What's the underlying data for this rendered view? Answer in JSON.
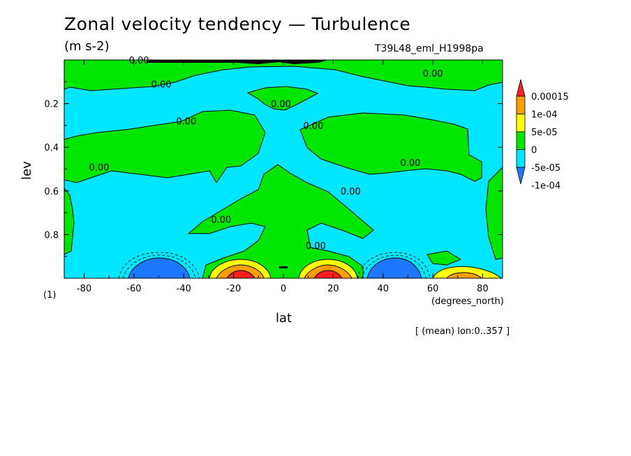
{
  "header": {
    "title": "Zonal velocity tendency — Turbulence",
    "units": "(m s-2)",
    "run_id": "T39L48_eml_H1998pa"
  },
  "footer": {
    "panel_index": "(1)",
    "x_unit": "(degrees_north)",
    "mean_note": "[ (mean) lon:0..357 ]"
  },
  "chart_data": {
    "type": "heatmap",
    "title": "Zonal velocity tendency — Turbulence",
    "units": "(m s-2)",
    "xlabel": "lat",
    "ylabel": "lev",
    "xlim": [
      -88,
      88
    ],
    "ylim": [
      0.0,
      1.0
    ],
    "y_inverted": true,
    "x_ticks": [
      -80,
      -60,
      -40,
      -20,
      0,
      20,
      40,
      60,
      80
    ],
    "y_ticks": [
      0.2,
      0.4,
      0.6,
      0.8
    ],
    "colorbar": {
      "levels": [
        -0.0001,
        -5e-05,
        0,
        5e-05,
        0.0001,
        0.00015
      ],
      "labels": [
        "-1e-04",
        "-5e-05",
        "0",
        "5e-05",
        "1e-04",
        "0.00015"
      ],
      "colors": [
        "#1e78ff",
        "#00e6ff",
        "#00e600",
        "#ffff00",
        "#ff9e00",
        "#ff1e1e"
      ],
      "colors_top_to_bottom": [
        "#ff1e1e",
        "#ff9e00",
        "#ffff00",
        "#00e600",
        "#00e6ff",
        "#1e78ff"
      ]
    },
    "regions": [
      {
        "name": "background",
        "level": "-5e-05 to 0",
        "lat_range": [
          -88,
          88
        ],
        "lev_range": [
          0.0,
          1.0
        ]
      },
      {
        "name": "upper-midlatitude-south",
        "level": "0 to 5e-05",
        "lat_range": [
          -88,
          -10
        ],
        "lev_range": [
          0.3,
          0.55
        ]
      },
      {
        "name": "upper-midlatitude-north",
        "level": "0 to 5e-05",
        "lat_range": [
          5,
          88
        ],
        "lev_range": [
          0.25,
          0.55
        ]
      },
      {
        "name": "top-band",
        "level": "0 to 5e-05",
        "lat_range": [
          -88,
          88
        ],
        "lev_range": [
          0.0,
          0.1
        ]
      },
      {
        "name": "equatorial-cap",
        "level": "0 to 5e-05",
        "lat_range": [
          -15,
          10
        ],
        "lev_range": [
          0.13,
          0.2
        ]
      },
      {
        "name": "lower-tropics",
        "level": "0 to 5e-05",
        "lat_range": [
          -40,
          40
        ],
        "lev_range": [
          0.47,
          0.87
        ]
      },
      {
        "name": "surface-subtropics-south",
        "level": "5e-05 to 0.00015",
        "lat_range": [
          -30,
          -5
        ],
        "lev_range": [
          0.9,
          1.0
        ],
        "peak_lat": -18
      },
      {
        "name": "surface-subtropics-north",
        "level": "5e-05 to 0.00015",
        "lat_range": [
          7,
          30
        ],
        "lev_range": [
          0.9,
          1.0
        ],
        "peak_lat": 18
      },
      {
        "name": "surface-midlat-south",
        "level": "-1e-04 to -5e-05",
        "lat_range": [
          -58,
          -32
        ],
        "lev_range": [
          0.93,
          1.0
        ],
        "peak_lat": -45
      },
      {
        "name": "surface-midlat-north",
        "level": "-1e-04 to -5e-05",
        "lat_range": [
          32,
          56
        ],
        "lev_range": [
          0.93,
          1.0
        ],
        "peak_lat": 45
      },
      {
        "name": "surface-highlat-north",
        "level": "5e-05 to 1e-04",
        "lat_range": [
          60,
          88
        ],
        "lev_range": [
          0.96,
          1.0
        ]
      }
    ],
    "contour_labels": [
      {
        "text": "0.00",
        "lat": -58,
        "lev": 0.0
      },
      {
        "text": "0.00",
        "lat": -49,
        "lev": 0.11
      },
      {
        "text": "0.00",
        "lat": -39,
        "lev": 0.28
      },
      {
        "text": "0.00",
        "lat": -74,
        "lev": 0.49
      },
      {
        "text": "0.00",
        "lat": -25,
        "lev": 0.73
      },
      {
        "text": "0.00",
        "lat": -1,
        "lev": 0.2
      },
      {
        "text": "0.00",
        "lat": 12,
        "lev": 0.3
      },
      {
        "text": "0.00",
        "lat": 27,
        "lev": 0.6
      },
      {
        "text": "0.00",
        "lat": 13,
        "lev": 0.85
      },
      {
        "text": "0.00",
        "lat": 51,
        "lev": 0.47
      },
      {
        "text": "0.00",
        "lat": 60,
        "lev": 0.06
      }
    ]
  }
}
